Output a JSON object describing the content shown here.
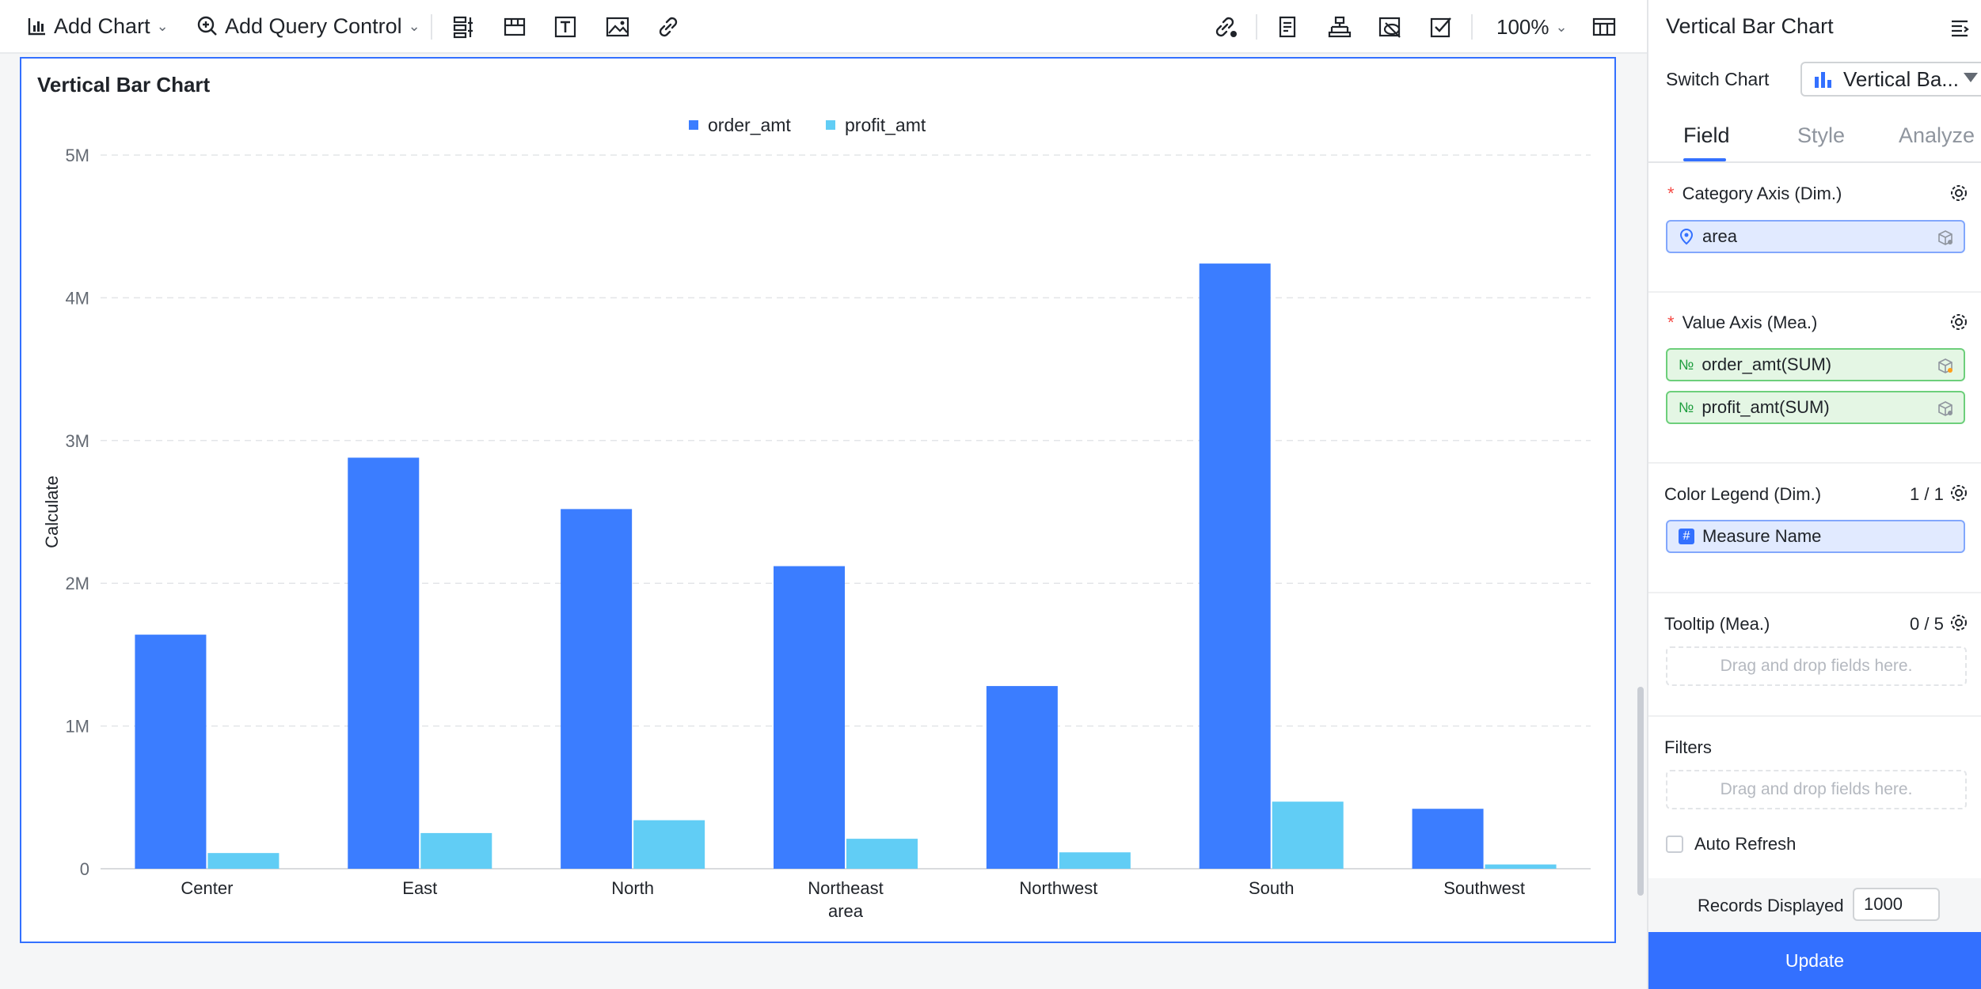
{
  "toolbar": {
    "add_chart": "Add Chart",
    "add_query_control": "Add Query Control",
    "zoom": "100%"
  },
  "chart": {
    "title": "Vertical Bar Chart"
  },
  "panel": {
    "title": "Vertical Bar Chart",
    "switch_label": "Switch Chart",
    "switch_value": "Vertical Ba...",
    "tabs": [
      "Field",
      "Style",
      "Analyze"
    ],
    "active_tab": "Field",
    "category_axis": {
      "title": "Category Axis (Dim.)",
      "field": "area"
    },
    "value_axis": {
      "title": "Value Axis (Mea.)",
      "fields": [
        "order_amt(SUM)",
        "profit_amt(SUM)"
      ]
    },
    "color_legend": {
      "title": "Color Legend (Dim.)",
      "count": "1 / 1",
      "field": "Measure Name"
    },
    "tooltip": {
      "title": "Tooltip (Mea.)",
      "count": "0 / 5",
      "placeholder": "Drag and drop fields here."
    },
    "filters": {
      "title": "Filters",
      "placeholder": "Drag and drop fields here."
    },
    "auto_refresh": "Auto Refresh",
    "records_label": "Records Displayed",
    "records_value": "1000",
    "update": "Update"
  },
  "colors": {
    "accent": "#3370ff",
    "series_order": "#3b7dff",
    "series_profit": "#61cdf5"
  },
  "chart_data": {
    "type": "bar",
    "title": "Vertical Bar Chart",
    "xlabel": "area",
    "ylabel": "Calculate",
    "categories": [
      "Center",
      "East",
      "North",
      "Northeast",
      "Northwest",
      "South",
      "Southwest"
    ],
    "series": [
      {
        "name": "order_amt",
        "values": [
          1640000,
          2880000,
          2520000,
          2120000,
          1280000,
          4240000,
          420000
        ]
      },
      {
        "name": "profit_amt",
        "values": [
          110000,
          250000,
          340000,
          210000,
          115000,
          470000,
          30000
        ]
      }
    ],
    "ylim": [
      0,
      5000000
    ],
    "yticks": [
      "0",
      "1M",
      "2M",
      "3M",
      "4M",
      "5M"
    ],
    "grid": true,
    "legend": "top-center"
  }
}
